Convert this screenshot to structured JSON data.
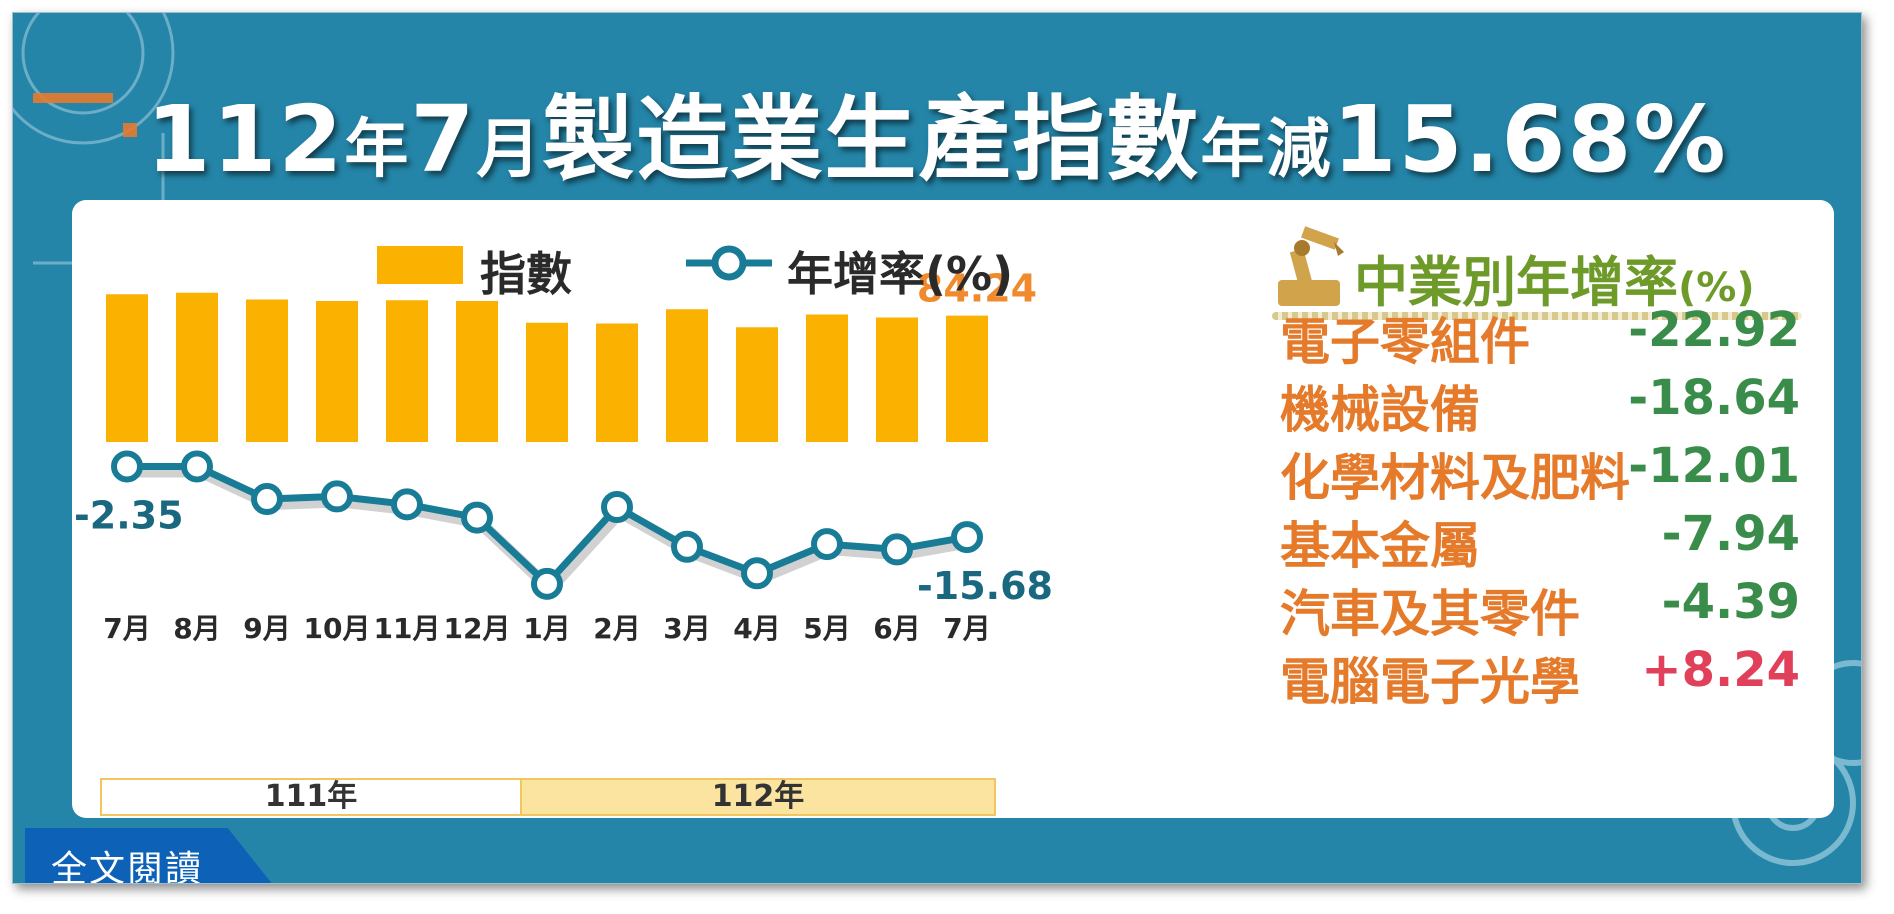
{
  "title": {
    "year": "112",
    "year_unit": "年",
    "month": "7",
    "month_unit": "月",
    "main": "製造業生產指數",
    "change_word": "年減",
    "value": "15.68%"
  },
  "legend": {
    "bar_label": "指數",
    "line_label": "年增率(%)"
  },
  "colors": {
    "frame": "#2485a8",
    "bar": "#fbb100",
    "line": "#187c96",
    "positive": "#e0405a",
    "negative": "#3a8c4a",
    "sector_name": "#e57a2a",
    "sector_title": "#6e9a2a",
    "first_label": "#1a6780",
    "last_bar_label": "#f08a2c"
  },
  "chart_data": {
    "type": "bar+line",
    "categories": [
      "7月",
      "8月",
      "9月",
      "10月",
      "11月",
      "12月",
      "1月",
      "2月",
      "3月",
      "4月",
      "5月",
      "6月",
      "7月"
    ],
    "year_groups": [
      {
        "label": "111年",
        "count": 6
      },
      {
        "label": "112年",
        "count": 7
      }
    ],
    "series": [
      {
        "name": "指數",
        "type": "bar",
        "values": [
          98.5,
          99.5,
          95.0,
          94.0,
          94.5,
          94.0,
          79.5,
          79.0,
          88.5,
          76.5,
          85.0,
          83.0,
          84.24
        ]
      },
      {
        "name": "年增率(%)",
        "type": "line",
        "values": [
          -2.35,
          -2.35,
          -8.5,
          -8.0,
          -9.5,
          -12.0,
          -24.5,
          -10.0,
          -17.5,
          -22.5,
          -17.0,
          -18.0,
          -15.68
        ]
      }
    ],
    "point_labels": {
      "first": "-2.35",
      "last": "-15.68",
      "last_bar": "84.24"
    }
  },
  "sector_panel": {
    "title": "中業別年增率",
    "unit": "(%)",
    "items": [
      {
        "name": "電子零組件",
        "value": "-22.92",
        "sign": "negative"
      },
      {
        "name": "機械設備",
        "value": "-18.64",
        "sign": "negative"
      },
      {
        "name": "化學材料及肥料",
        "value": "-12.01",
        "sign": "negative"
      },
      {
        "name": "基本金屬",
        "value": "-7.94",
        "sign": "negative"
      },
      {
        "name": "汽車及其零件",
        "value": "-4.39",
        "sign": "negative"
      },
      {
        "name": "電腦電子光學",
        "value": "+8.24",
        "sign": "positive"
      }
    ]
  },
  "read_more": "全文閱讀",
  "icons": [
    "robot-arm-icon",
    "gear-icon",
    "circuit-decoration-icon"
  ]
}
